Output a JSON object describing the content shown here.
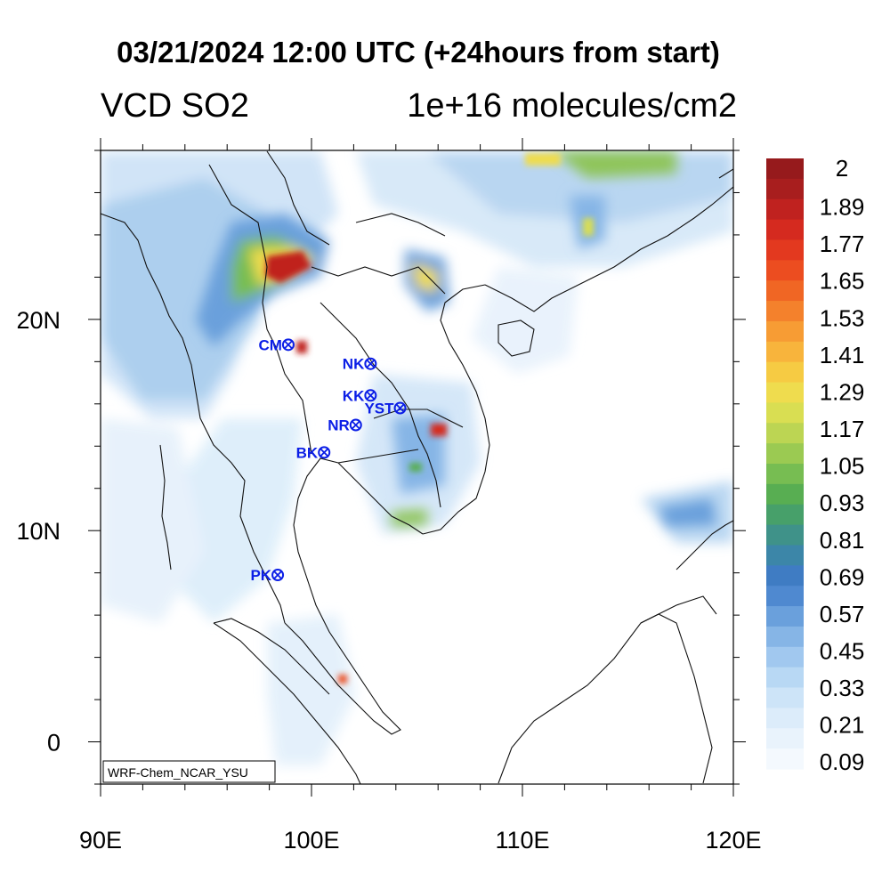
{
  "title": "03/21/2024 12:00 UTC (+24hours from start)",
  "subtitle_left": "VCD SO2",
  "subtitle_right": "1e+16 molecules/cm2",
  "footer_label": "WRF-Chem_NCAR_YSU",
  "map": {
    "lon_range": [
      90,
      120
    ],
    "lat_range": [
      -2,
      28
    ],
    "x_ticks": [
      "90E",
      "100E",
      "110E",
      "120E"
    ],
    "y_ticks": [
      "20N",
      "10N",
      "0"
    ],
    "stations": [
      {
        "name": "CM",
        "lon": 98.9,
        "lat": 18.8
      },
      {
        "name": "NK",
        "lon": 102.8,
        "lat": 17.9
      },
      {
        "name": "KK",
        "lon": 102.8,
        "lat": 16.4
      },
      {
        "name": "YST",
        "lon": 104.2,
        "lat": 15.8
      },
      {
        "name": "NR",
        "lon": 102.1,
        "lat": 15.0
      },
      {
        "name": "BK",
        "lon": 100.6,
        "lat": 13.7
      },
      {
        "name": "PK",
        "lon": 98.4,
        "lat": 7.9
      }
    ],
    "station_color": "#0b1ee6"
  },
  "colorbar": {
    "labels": [
      "2",
      "1.89",
      "1.77",
      "1.65",
      "1.53",
      "1.41",
      "1.29",
      "1.17",
      "1.05",
      "0.93",
      "0.81",
      "0.69",
      "0.57",
      "0.45",
      "0.33",
      "0.21",
      "0.09"
    ],
    "colors": [
      "#961a1c",
      "#a81e1e",
      "#c0221f",
      "#d52a1f",
      "#e3391f",
      "#ec4d20",
      "#f06624",
      "#f4812c",
      "#f79c34",
      "#f8b43c",
      "#f6cb43",
      "#efdc4e",
      "#d9de52",
      "#bcd553",
      "#9bca52",
      "#77bd52",
      "#58ae52",
      "#47a06a",
      "#3f9289",
      "#3c86a8",
      "#3f7cc3",
      "#4f89d0",
      "#6aa0dc",
      "#86b5e6",
      "#a1c8ef",
      "#b8d8f4",
      "#cde4f8",
      "#dcecfa",
      "#e9f3fc",
      "#f4f9fe"
    ]
  }
}
